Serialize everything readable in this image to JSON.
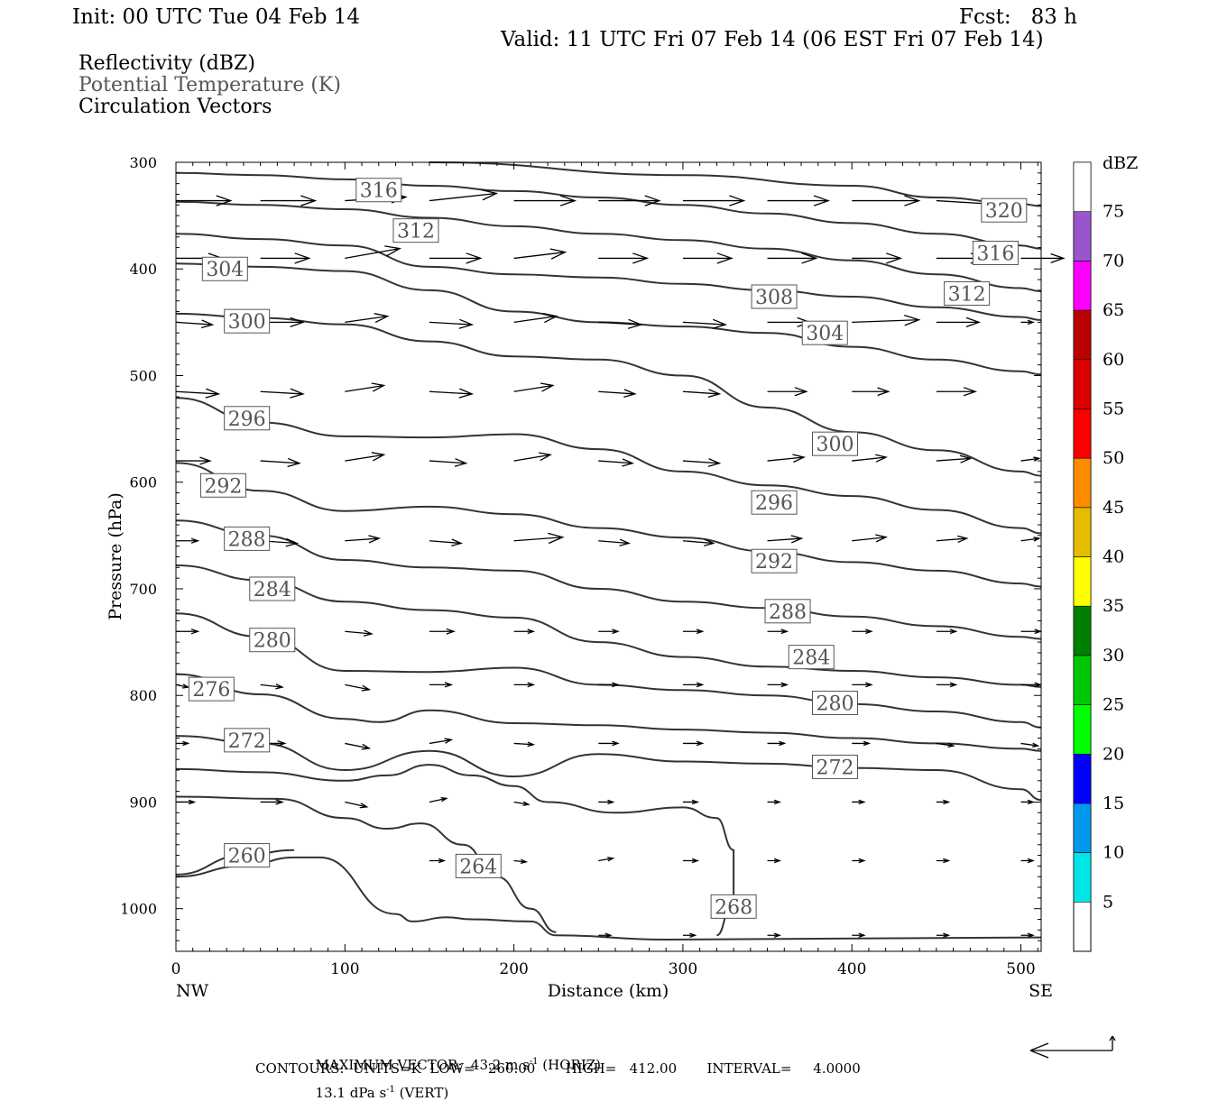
{
  "header": {
    "init": "Init: 00 UTC Tue 04 Feb 14",
    "fcst": "Fcst:   83 h",
    "valid": "Valid: 11 UTC Fri 07 Feb 14 (06 EST Fri 07 Feb 14)"
  },
  "fields": {
    "reflectivity": "Reflectivity (dBZ)",
    "theta": "Potential Temperature (K)",
    "vectors": "Circulation Vectors"
  },
  "colors": {
    "contour": "#333333",
    "frame": "#000000",
    "theta_label": "#555555"
  },
  "chart_data": {
    "type": "line",
    "title": "",
    "xlabel": "Distance (km)",
    "ylabel": "Pressure (hPa)",
    "xlim": [
      0,
      512
    ],
    "ylim": [
      1040,
      300
    ],
    "x_ticks": [
      0,
      100,
      200,
      300,
      400,
      500
    ],
    "y_ticks": [
      300,
      400,
      500,
      600,
      700,
      800,
      900,
      1000
    ],
    "x_end_labels": {
      "left": "NW",
      "right": "SE"
    },
    "colorbar": {
      "title": "dBZ",
      "levels": [
        5,
        10,
        15,
        20,
        25,
        30,
        35,
        40,
        45,
        50,
        55,
        60,
        65,
        70,
        75
      ],
      "colors": [
        "#00e5e5",
        "#0099ee",
        "#0000ff",
        "#00ff00",
        "#00c800",
        "#008000",
        "#ffff00",
        "#e5bc00",
        "#ff8c00",
        "#ff0000",
        "#dd0000",
        "#bb0000",
        "#ff00ff",
        "#9955cc",
        "#ffffff"
      ]
    },
    "series": [
      {
        "name": "320",
        "x": [
          150,
          300,
          400,
          450,
          500,
          512
        ],
        "y": [
          300,
          312,
          322,
          333,
          339,
          341
        ],
        "labels": [
          [
            490,
            345
          ]
        ]
      },
      {
        "name": "316",
        "x": [
          0,
          50,
          100,
          150,
          200,
          250,
          300,
          350,
          400,
          450,
          500,
          512
        ],
        "y": [
          310,
          312,
          316,
          322,
          327,
          333,
          340,
          348,
          357,
          367,
          378,
          381
        ],
        "labels": [
          [
            120,
            326
          ],
          [
            485,
            385
          ]
        ]
      },
      {
        "name": "312",
        "x": [
          0,
          50,
          100,
          150,
          200,
          250,
          300,
          350,
          400,
          450,
          500,
          512
        ],
        "y": [
          337,
          340,
          344,
          352,
          360,
          367,
          373,
          381,
          392,
          405,
          418,
          421
        ],
        "labels": [
          [
            142,
            364
          ],
          [
            468,
            423
          ]
        ]
      },
      {
        "name": "308",
        "x": [
          0,
          50,
          100,
          150,
          200,
          250,
          300,
          350,
          400,
          450,
          500,
          512
        ],
        "y": [
          367,
          372,
          378,
          398,
          405,
          408,
          414,
          420,
          426,
          436,
          445,
          448
        ],
        "labels": [
          [
            354,
            426
          ]
        ]
      },
      {
        "name": "304",
        "x": [
          0,
          50,
          100,
          150,
          200,
          250,
          300,
          350,
          400,
          450,
          500,
          512
        ],
        "y": [
          395,
          398,
          402,
          420,
          440,
          450,
          454,
          460,
          473,
          485,
          496,
          499
        ],
        "labels": [
          [
            29,
            400
          ],
          [
            384,
            460
          ]
        ]
      },
      {
        "name": "300",
        "x": [
          0,
          50,
          100,
          150,
          200,
          250,
          300,
          350,
          400,
          450,
          500,
          512
        ],
        "y": [
          442,
          446,
          452,
          468,
          482,
          485,
          500,
          530,
          553,
          570,
          590,
          594
        ],
        "labels": [
          [
            42,
            449
          ],
          [
            390,
            564
          ]
        ]
      },
      {
        "name": "296",
        "x": [
          0,
          50,
          100,
          150,
          200,
          250,
          300,
          350,
          400,
          450,
          500,
          512
        ],
        "y": [
          521,
          544,
          557,
          558,
          555,
          569,
          590,
          603,
          613,
          626,
          643,
          648
        ],
        "labels": [
          [
            42,
            540
          ],
          [
            354,
            619
          ]
        ]
      },
      {
        "name": "292",
        "x": [
          0,
          50,
          100,
          150,
          200,
          250,
          300,
          350,
          400,
          450,
          500,
          512
        ],
        "y": [
          582,
          608,
          627,
          623,
          630,
          643,
          652,
          665,
          675,
          683,
          695,
          698
        ],
        "labels": [
          [
            28,
            603
          ],
          [
            354,
            674
          ]
        ]
      },
      {
        "name": "288",
        "x": [
          0,
          50,
          100,
          150,
          200,
          250,
          300,
          350,
          400,
          450,
          500,
          512
        ],
        "y": [
          636,
          650,
          673,
          680,
          683,
          700,
          712,
          718,
          726,
          735,
          745,
          747
        ],
        "labels": [
          [
            42,
            653
          ],
          [
            362,
            721
          ]
        ]
      },
      {
        "name": "284",
        "x": [
          0,
          50,
          100,
          150,
          200,
          250,
          300,
          350,
          400,
          450,
          500,
          512
        ],
        "y": [
          678,
          692,
          712,
          720,
          727,
          750,
          764,
          773,
          777,
          783,
          790,
          792
        ],
        "labels": [
          [
            57,
            700
          ],
          [
            376,
            764
          ]
        ]
      },
      {
        "name": "280",
        "x": [
          0,
          50,
          100,
          150,
          200,
          250,
          300,
          350,
          400,
          450,
          500,
          512
        ],
        "y": [
          723,
          745,
          777,
          778,
          774,
          790,
          795,
          800,
          808,
          815,
          825,
          830
        ],
        "labels": [
          [
            57,
            748
          ],
          [
            390,
            807
          ]
        ]
      },
      {
        "name": "276",
        "x": [
          0,
          50,
          100,
          120,
          150,
          200,
          250,
          300,
          350,
          400,
          450,
          500,
          512
        ],
        "y": [
          780,
          799,
          822,
          825,
          814,
          826,
          828,
          832,
          835,
          840,
          845,
          850,
          852
        ],
        "labels": [
          [
            21,
            794
          ]
        ]
      },
      {
        "name": "272",
        "x": [
          0,
          50,
          100,
          150,
          200,
          250,
          300,
          350,
          400,
          450,
          500,
          512
        ],
        "y": [
          838,
          845,
          870,
          852,
          876,
          855,
          862,
          864,
          868,
          870,
          888,
          898
        ],
        "labels": [
          [
            42,
            842
          ],
          [
            390,
            867
          ]
        ]
      },
      {
        "name": "268",
        "x": [
          0,
          50,
          100,
          125,
          150,
          175,
          200,
          220,
          260,
          300,
          320,
          330,
          330,
          320
        ],
        "y": [
          869,
          872,
          880,
          875,
          865,
          875,
          885,
          900,
          910,
          905,
          915,
          945,
          990,
          1025
        ],
        "labels": [
          [
            330,
            998
          ]
        ]
      },
      {
        "name": "264",
        "x": [
          0,
          60,
          100,
          125,
          145,
          170,
          190,
          210,
          225
        ],
        "y": [
          895,
          897,
          915,
          925,
          920,
          940,
          970,
          1000,
          1022
        ],
        "labels": [
          [
            179,
            960
          ]
        ]
      },
      {
        "name": "260",
        "x": [
          0,
          40,
          70
        ],
        "y": [
          968,
          950,
          945
        ],
        "labels": [
          [
            42,
            950
          ]
        ]
      },
      {
        "name": "",
        "x": [
          0,
          40,
          70,
          85,
          130,
          140,
          160,
          175,
          210,
          225,
          290,
          512
        ],
        "y": [
          970,
          960,
          952,
          952,
          1005,
          1012,
          1008,
          1010,
          1012,
          1025,
          1029,
          1027
        ],
        "labels": []
      }
    ],
    "vectors": {
      "x": [
        0,
        50,
        100,
        150,
        200,
        250,
        300,
        350,
        400,
        450,
        500
      ],
      "rows": [
        {
          "p": 336,
          "u": [
            45,
            45,
            50,
            55,
            50,
            50,
            50,
            50,
            55,
            50,
            0
          ],
          "w": [
            0,
            0,
            3,
            6,
            0,
            0,
            0,
            0,
            0,
            -3,
            0
          ]
        },
        {
          "p": 390,
          "u": [
            38,
            40,
            45,
            42,
            42,
            40,
            40,
            40,
            40,
            40,
            35
          ],
          "w": [
            0,
            0,
            8,
            0,
            5,
            0,
            0,
            0,
            0,
            0,
            0
          ]
        },
        {
          "p": 450,
          "u": [
            30,
            35,
            35,
            35,
            35,
            35,
            35,
            35,
            55,
            35,
            10
          ],
          "w": [
            -2,
            0,
            5,
            -2,
            5,
            -2,
            -2,
            0,
            2,
            0,
            0
          ]
        },
        {
          "p": 515,
          "u": [
            35,
            35,
            32,
            35,
            32,
            30,
            30,
            32,
            30,
            32,
            0
          ],
          "w": [
            -2,
            -2,
            5,
            -2,
            5,
            -2,
            -2,
            0,
            0,
            0,
            0
          ]
        },
        {
          "p": 580,
          "u": [
            28,
            32,
            32,
            30,
            30,
            28,
            30,
            30,
            28,
            28,
            15
          ],
          "w": [
            0,
            -2,
            5,
            -2,
            5,
            -2,
            -2,
            3,
            3,
            2,
            2
          ]
        },
        {
          "p": 655,
          "u": [
            18,
            30,
            28,
            26,
            40,
            25,
            25,
            28,
            28,
            25,
            15
          ],
          "w": [
            0,
            -2,
            2,
            -2,
            3,
            -2,
            -2,
            2,
            3,
            2,
            2
          ]
        },
        {
          "p": 740,
          "u": [
            18,
            18,
            22,
            20,
            16,
            16,
            16,
            16,
            16,
            16,
            16
          ],
          "w": [
            0,
            0,
            -2,
            0,
            0,
            0,
            0,
            0,
            0,
            0,
            0
          ]
        },
        {
          "p": 790,
          "u": [
            10,
            18,
            20,
            18,
            16,
            16,
            16,
            16,
            16,
            16,
            16
          ],
          "w": [
            -2,
            -2,
            -4,
            0,
            0,
            0,
            0,
            0,
            0,
            0,
            0
          ]
        },
        {
          "p": 845,
          "u": [
            10,
            20,
            20,
            18,
            16,
            16,
            16,
            14,
            14,
            14,
            14
          ],
          "w": [
            0,
            0,
            -4,
            3,
            -1,
            0,
            0,
            0,
            0,
            -2,
            -2
          ]
        },
        {
          "p": 900,
          "u": [
            15,
            18,
            18,
            14,
            12,
            12,
            12,
            10,
            10,
            10,
            10
          ],
          "w": [
            0,
            0,
            -4,
            3,
            -2,
            0,
            0,
            0,
            0,
            0,
            0
          ]
        },
        {
          "p": 955,
          "u": [
            0,
            0,
            0,
            12,
            10,
            12,
            12,
            10,
            10,
            10,
            10
          ],
          "w": [
            0,
            0,
            0,
            0,
            -1,
            2,
            0,
            0,
            0,
            0,
            0
          ]
        },
        {
          "p": 1025,
          "u": [
            0,
            0,
            0,
            0,
            0,
            10,
            10,
            10,
            10,
            10,
            10
          ],
          "w": [
            0,
            0,
            0,
            0,
            0,
            0,
            0,
            0,
            0,
            0,
            0
          ]
        }
      ]
    },
    "reference_vector": "MAXIMUM VECTOR:  43.2 m s-1 (HORIZ)        13.1 dPa s-1 (VERT)"
  },
  "footer": {
    "max_vector_prefix": "MAXIMUM VECTOR:  43.2 m s",
    "max_vector_horiz": " (HORIZ)",
    "max_vector_vert_prefix": "13.1 dPa s",
    "max_vector_vert": " (VERT)",
    "superscript": "-1",
    "contours": "CONTOURS:  UNITS=K  LOW=   260.00       HIGH=   412.00       INTERVAL=     4.0000"
  }
}
